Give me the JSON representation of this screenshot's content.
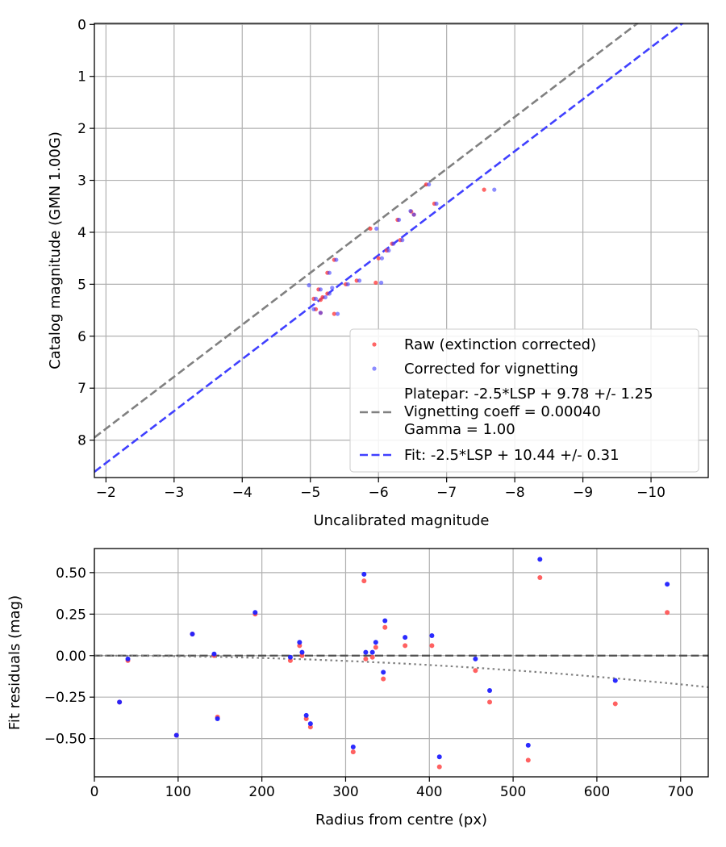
{
  "chart_data": [
    {
      "type": "scatter",
      "xlabel": "Uncalibrated magnitude",
      "ylabel": "Catalog magnitude (GMN 1.00G)",
      "xlim": [
        -1.83,
        -10.84
      ],
      "ylim": [
        8.72,
        -0.02
      ],
      "xticks": [
        -2,
        -3,
        -4,
        -5,
        -6,
        -7,
        -8,
        -9,
        -10
      ],
      "xtick_labels": [
        "−2",
        "−3",
        "−4",
        "−5",
        "−6",
        "−7",
        "−8",
        "−9",
        "−10"
      ],
      "yticks": [
        0,
        1,
        2,
        3,
        4,
        5,
        6,
        7,
        8
      ],
      "ytick_labels": [
        "0",
        "1",
        "2",
        "3",
        "4",
        "5",
        "6",
        "7",
        "8"
      ],
      "grid": true,
      "legend_position": "bottom-right",
      "series": [
        {
          "name": "Raw (extinction corrected)",
          "kind": "points",
          "color": "#ff4040",
          "points": [
            [
              -6.7,
              3.08
            ],
            [
              -7.55,
              3.18
            ],
            [
              -6.82,
              3.45
            ],
            [
              -6.28,
              3.76
            ],
            [
              -6.48,
              3.6
            ],
            [
              -6.52,
              3.66
            ],
            [
              -5.88,
              3.93
            ],
            [
              -6.32,
              4.15
            ],
            [
              -6.2,
              4.22
            ],
            [
              -6.12,
              4.35
            ],
            [
              -6.0,
              4.5
            ],
            [
              -5.35,
              4.53
            ],
            [
              -5.25,
              4.78
            ],
            [
              -5.68,
              4.93
            ],
            [
              -5.96,
              4.97
            ],
            [
              -5.52,
              5.0
            ],
            [
              -5.12,
              5.1
            ],
            [
              -5.05,
              5.28
            ],
            [
              -5.18,
              5.25
            ],
            [
              -5.25,
              5.18
            ],
            [
              -5.15,
              5.3
            ],
            [
              -5.08,
              5.48
            ],
            [
              -5.15,
              5.55
            ],
            [
              -5.35,
              5.57
            ]
          ]
        },
        {
          "name": "Corrected for vignetting",
          "kind": "points",
          "color": "#4040ff",
          "points": [
            [
              -6.74,
              3.08
            ],
            [
              -7.7,
              3.18
            ],
            [
              -6.85,
              3.45
            ],
            [
              -6.3,
              3.76
            ],
            [
              -6.47,
              3.59
            ],
            [
              -6.52,
              3.66
            ],
            [
              -5.97,
              3.93
            ],
            [
              -6.35,
              4.15
            ],
            [
              -6.22,
              4.22
            ],
            [
              -6.15,
              4.35
            ],
            [
              -6.05,
              4.5
            ],
            [
              -5.38,
              4.53
            ],
            [
              -5.28,
              4.78
            ],
            [
              -5.72,
              4.93
            ],
            [
              -6.04,
              4.97
            ],
            [
              -5.55,
              5.0
            ],
            [
              -4.98,
              5.02
            ],
            [
              -5.15,
              5.1
            ],
            [
              -5.08,
              5.28
            ],
            [
              -5.22,
              5.25
            ],
            [
              -5.28,
              5.18
            ],
            [
              -5.32,
              5.07
            ],
            [
              -5.05,
              5.48
            ],
            [
              -5.15,
              5.55
            ],
            [
              -5.4,
              5.57
            ]
          ]
        },
        {
          "name": "Platepar: -2.5*LSP + 9.78 +/- 1.25\nVignetting coeff = 0.00040\nGamma = 1.00",
          "label_lines": [
            "Platepar: -2.5*LSP + 9.78 +/- 1.25",
            "Vignetting coeff = 0.00040",
            "Gamma = 1.00"
          ],
          "kind": "dashed-line",
          "color": "#808080",
          "x": [
            -1.83,
            -10.84
          ],
          "intercept": 9.78,
          "slope": 1
        },
        {
          "name": "Fit: -2.5*LSP + 10.44 +/- 0.31",
          "kind": "dashed-line",
          "color": "#4040ff",
          "x": [
            -1.83,
            -10.84
          ],
          "intercept": 10.44,
          "slope": 1
        }
      ]
    },
    {
      "type": "scatter",
      "xlabel": "Radius from centre (px)",
      "ylabel": "Fit residuals (mag)",
      "xlim": [
        0,
        733
      ],
      "ylim": [
        -0.73,
        0.645
      ],
      "xticks": [
        0,
        100,
        200,
        300,
        400,
        500,
        600,
        700
      ],
      "xtick_labels": [
        "0",
        "100",
        "200",
        "300",
        "400",
        "500",
        "600",
        "700"
      ],
      "yticks": [
        -0.5,
        -0.25,
        0,
        0.25,
        0.5
      ],
      "ytick_labels": [
        "−0.50",
        "−0.25",
        "0.00",
        "0.25",
        "0.50"
      ],
      "grid": true,
      "series": [
        {
          "name": "Raw residuals",
          "kind": "points",
          "color": "#ff5050",
          "points": [
            [
              30,
              -0.28
            ],
            [
              40,
              -0.03
            ],
            [
              98,
              -0.48
            ],
            [
              117,
              0.13
            ],
            [
              143,
              0.0
            ],
            [
              147,
              -0.37
            ],
            [
              192,
              0.25
            ],
            [
              234,
              -0.03
            ],
            [
              245,
              0.06
            ],
            [
              248,
              0.0
            ],
            [
              253,
              -0.38
            ],
            [
              258,
              -0.43
            ],
            [
              309,
              -0.58
            ],
            [
              322,
              0.45
            ],
            [
              324,
              -0.02
            ],
            [
              332,
              -0.01
            ],
            [
              336,
              0.05
            ],
            [
              345,
              -0.14
            ],
            [
              347,
              0.17
            ],
            [
              371,
              0.06
            ],
            [
              403,
              0.06
            ],
            [
              412,
              -0.67
            ],
            [
              455,
              -0.09
            ],
            [
              472,
              -0.28
            ],
            [
              518,
              -0.63
            ],
            [
              532,
              0.47
            ],
            [
              622,
              -0.29
            ],
            [
              684,
              0.26
            ]
          ]
        },
        {
          "name": "Vignetting-corrected residuals",
          "kind": "points",
          "color": "#2020ff",
          "points": [
            [
              30,
              -0.28
            ],
            [
              40,
              -0.02
            ],
            [
              98,
              -0.48
            ],
            [
              117,
              0.13
            ],
            [
              143,
              0.01
            ],
            [
              147,
              -0.38
            ],
            [
              192,
              0.26
            ],
            [
              234,
              -0.01
            ],
            [
              245,
              0.08
            ],
            [
              248,
              0.02
            ],
            [
              253,
              -0.36
            ],
            [
              258,
              -0.41
            ],
            [
              309,
              -0.55
            ],
            [
              322,
              0.49
            ],
            [
              324,
              0.02
            ],
            [
              332,
              0.02
            ],
            [
              336,
              0.08
            ],
            [
              345,
              -0.1
            ],
            [
              347,
              0.21
            ],
            [
              371,
              0.11
            ],
            [
              403,
              0.12
            ],
            [
              412,
              -0.61
            ],
            [
              455,
              -0.02
            ],
            [
              472,
              -0.21
            ],
            [
              518,
              -0.54
            ],
            [
              532,
              0.58
            ],
            [
              622,
              -0.15
            ],
            [
              684,
              0.43
            ]
          ]
        },
        {
          "name": "Zero line",
          "kind": "dashed-line",
          "color": "#505050",
          "x": [
            0,
            733
          ],
          "y": [
            0,
            0
          ]
        },
        {
          "name": "Vignetting curve",
          "kind": "dotted-line",
          "color": "#808080",
          "x": [
            0,
            733
          ],
          "y": [
            0,
            -0.19
          ]
        }
      ]
    }
  ]
}
